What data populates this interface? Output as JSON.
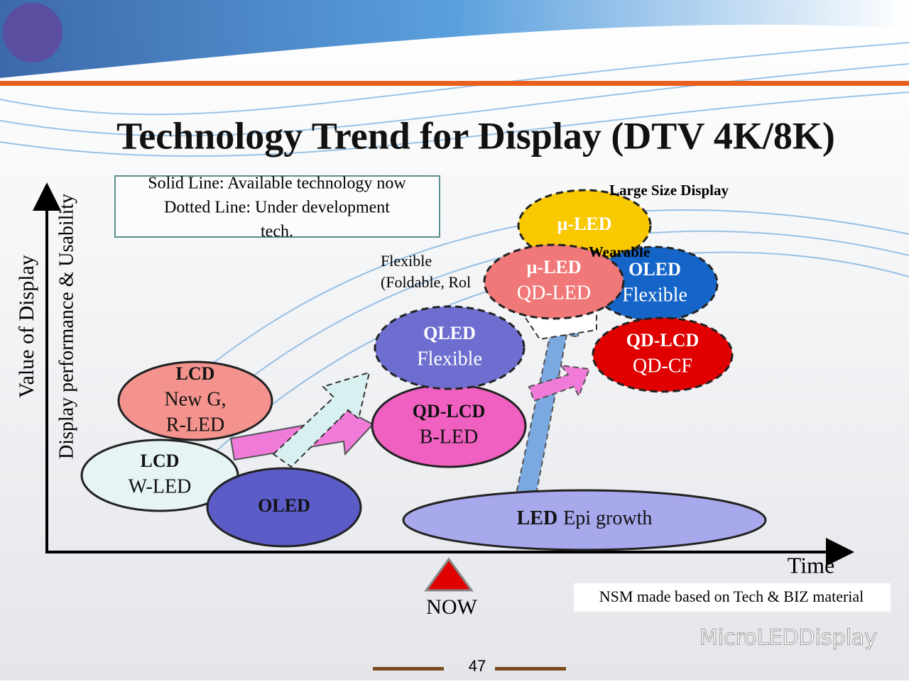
{
  "title": "Technology Trend for Display (DTV 4K/8K)",
  "legend": [
    "Solid Line: Available technology now",
    "Dotted Line: Under development",
    "tech."
  ],
  "axis": {
    "y_outer": "Value of Display",
    "y_inner": "Display performance & Usability",
    "x": "Time"
  },
  "now": "NOW",
  "note": "NSM made based on Tech & BIZ material",
  "annotations": {
    "flexible": [
      "Flexible",
      "(Foldable, Rol"
    ],
    "large_size": "Large Size Display",
    "wearable": "Wearable"
  },
  "nodes": [
    {
      "title": "LCD",
      "lines": [
        "New G,",
        "R-LED"
      ]
    },
    {
      "title": "LCD",
      "lines": [
        "W-LED"
      ]
    },
    {
      "title": "OLED",
      "lines": []
    },
    {
      "title": "QD-LCD",
      "lines": [
        "B-LED"
      ]
    },
    {
      "title": "QLED",
      "lines": [
        "Flexible"
      ]
    },
    {
      "title": "LED",
      "lines": [
        "Epi growth"
      ]
    },
    {
      "title": "µ-LED",
      "lines": []
    },
    {
      "title": "OLED",
      "lines": [
        "Flexible"
      ]
    },
    {
      "title": "QD-LCD",
      "lines": [
        "QD-CF"
      ]
    },
    {
      "title": "µ-LED",
      "lines": [
        "QD-LED"
      ]
    }
  ],
  "watermark": "MicroLEDDisplay",
  "page_number": "47"
}
